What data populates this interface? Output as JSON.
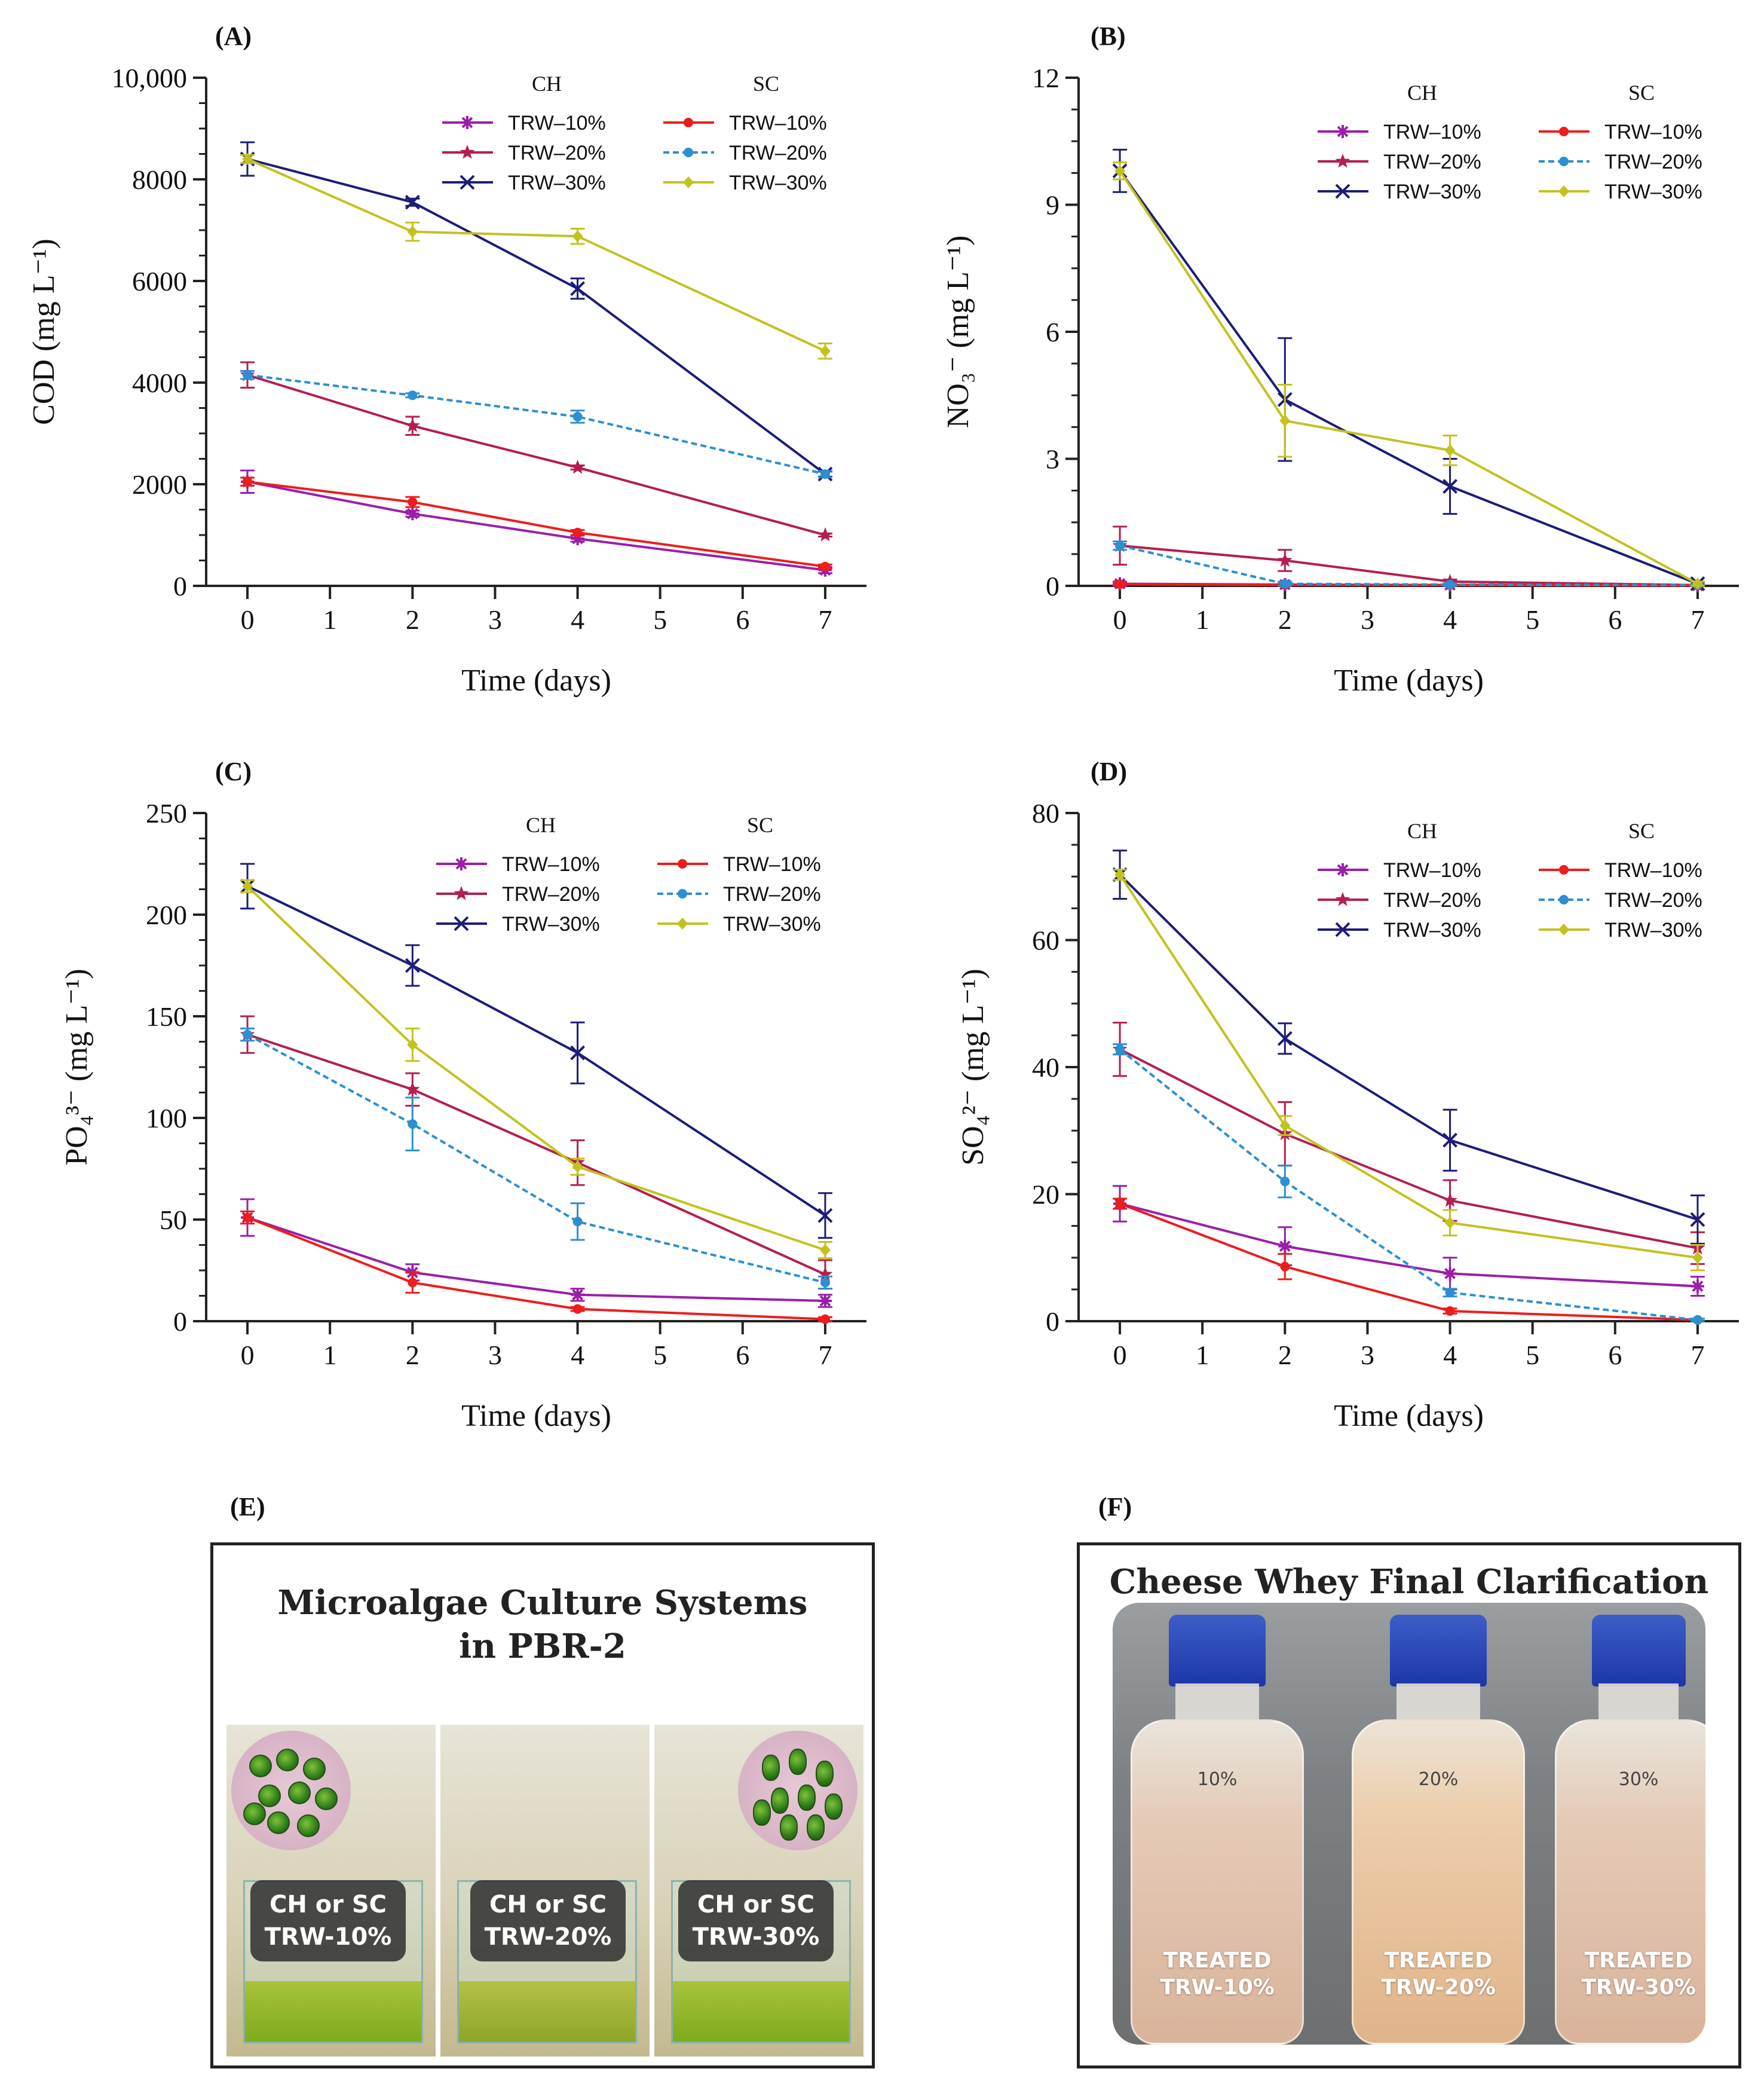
{
  "colors": {
    "ch10": "#9b1ea8",
    "ch20": "#b41e50",
    "ch30": "#1c1c7a",
    "sc10": "#ee1c1c",
    "sc20": "#2b8fd0",
    "sc30": "#c2c21e"
  },
  "legend": {
    "group_ch": "CH",
    "group_sc": "SC",
    "labels": [
      "TRW–10%",
      "TRW–20%",
      "TRW–30%"
    ]
  },
  "chart_data": [
    {
      "panel": "(A)",
      "type": "line",
      "xlabel": "Time (days)",
      "ylabel": "COD (mg L⁻¹)",
      "ylim": [
        0,
        10000
      ],
      "yticks": [
        0,
        2000,
        4000,
        6000,
        8000,
        10000
      ],
      "ytick_labels": [
        "0",
        "2000",
        "4000",
        "6000",
        "8000",
        "10,000"
      ],
      "xlim": [
        -0.5,
        7.5
      ],
      "xticks": [
        0,
        1,
        2,
        3,
        4,
        5,
        6,
        7
      ],
      "x": [
        0,
        2,
        4,
        7
      ],
      "series": [
        {
          "name": "CH TRW–10%",
          "key": "ch10",
          "marker": "asterisk",
          "values": [
            2050,
            1420,
            930,
            310
          ],
          "err": [
            220,
            60,
            60,
            60
          ]
        },
        {
          "name": "CH TRW–20%",
          "key": "ch20",
          "marker": "star",
          "values": [
            4150,
            3150,
            2330,
            1000
          ],
          "err": [
            250,
            180,
            40,
            30
          ]
        },
        {
          "name": "CH TRW–30%",
          "key": "ch30",
          "marker": "x",
          "values": [
            8400,
            7550,
            5850,
            2200
          ],
          "err": [
            330,
            70,
            200,
            50
          ]
        },
        {
          "name": "SC TRW–10%",
          "key": "sc10",
          "marker": "dot",
          "values": [
            2050,
            1650,
            1050,
            380
          ],
          "err": [
            80,
            100,
            50,
            40
          ]
        },
        {
          "name": "SC TRW–20%",
          "key": "sc20",
          "marker": "dot",
          "dashed": true,
          "values": [
            4150,
            3750,
            3330,
            2200
          ],
          "err": [
            80,
            40,
            120,
            60
          ]
        },
        {
          "name": "SC TRW–30%",
          "key": "sc30",
          "marker": "diamond",
          "values": [
            8400,
            6970,
            6880,
            4620
          ],
          "err": [
            80,
            180,
            150,
            150
          ]
        }
      ]
    },
    {
      "panel": "(B)",
      "type": "line",
      "xlabel": "Time (days)",
      "ylabel": "NO₃⁻ (mg L⁻¹)",
      "ylim": [
        0,
        12
      ],
      "yticks": [
        0,
        3,
        6,
        9,
        12
      ],
      "ytick_labels": [
        "0",
        "3",
        "6",
        "9",
        "12"
      ],
      "xlim": [
        -0.5,
        7.5
      ],
      "xticks": [
        0,
        1,
        2,
        3,
        4,
        5,
        6,
        7
      ],
      "x": [
        0,
        2,
        4,
        7
      ],
      "series": [
        {
          "name": "CH TRW–10%",
          "key": "ch10",
          "marker": "asterisk",
          "values": [
            0.05,
            0.03,
            0.02,
            0.01
          ],
          "err": [
            0.05,
            0.03,
            0.03,
            0.02
          ]
        },
        {
          "name": "CH TRW–20%",
          "key": "ch20",
          "marker": "star",
          "values": [
            0.95,
            0.6,
            0.1,
            0.02
          ],
          "err": [
            0.45,
            0.25,
            0.05,
            0.02
          ]
        },
        {
          "name": "CH TRW–30%",
          "key": "ch30",
          "marker": "x",
          "values": [
            9.8,
            4.4,
            2.35,
            0.05
          ],
          "err": [
            0.5,
            1.45,
            0.65,
            0.05
          ]
        },
        {
          "name": "SC TRW–10%",
          "key": "sc10",
          "marker": "dot",
          "values": [
            0.04,
            0.02,
            0.02,
            0.01
          ],
          "err": [
            0.02,
            0.02,
            0.02,
            0.01
          ]
        },
        {
          "name": "SC TRW–20%",
          "key": "sc20",
          "marker": "dot",
          "dashed": true,
          "values": [
            0.95,
            0.05,
            0.03,
            0.02
          ],
          "err": [
            0.1,
            0.05,
            0.03,
            0.02
          ]
        },
        {
          "name": "SC TRW–30%",
          "key": "sc30",
          "marker": "diamond",
          "values": [
            9.8,
            3.9,
            3.2,
            0.05
          ],
          "err": [
            0.2,
            0.85,
            0.35,
            0.05
          ]
        }
      ]
    },
    {
      "panel": "(C)",
      "type": "line",
      "xlabel": "Time (days)",
      "ylabel": "PO₄³⁻ (mg L⁻¹)",
      "ylim": [
        0,
        250
      ],
      "yticks": [
        0,
        50,
        100,
        150,
        200,
        250
      ],
      "ytick_labels": [
        "0",
        "50",
        "100",
        "150",
        "200",
        "250"
      ],
      "xlim": [
        -0.5,
        7.5
      ],
      "xticks": [
        0,
        1,
        2,
        3,
        4,
        5,
        6,
        7
      ],
      "x": [
        0,
        2,
        4,
        7
      ],
      "series": [
        {
          "name": "CH TRW–10%",
          "key": "ch10",
          "marker": "asterisk",
          "values": [
            51,
            24,
            13,
            10
          ],
          "err": [
            9,
            4,
            3,
            3
          ]
        },
        {
          "name": "CH TRW–20%",
          "key": "ch20",
          "marker": "star",
          "values": [
            141,
            114,
            78,
            23
          ],
          "err": [
            9,
            8,
            11,
            7
          ]
        },
        {
          "name": "CH TRW–30%",
          "key": "ch30",
          "marker": "x",
          "values": [
            214,
            175,
            132,
            52
          ],
          "err": [
            11,
            10,
            15,
            11
          ]
        },
        {
          "name": "SC TRW–10%",
          "key": "sc10",
          "marker": "dot",
          "values": [
            51,
            19,
            6,
            1
          ],
          "err": [
            3,
            5,
            1,
            1
          ]
        },
        {
          "name": "SC TRW–20%",
          "key": "sc20",
          "marker": "dot",
          "dashed": true,
          "values": [
            141,
            97,
            49,
            19
          ],
          "err": [
            3,
            13,
            9,
            3
          ]
        },
        {
          "name": "SC TRW–30%",
          "key": "sc30",
          "marker": "diamond",
          "values": [
            214,
            136,
            76,
            35
          ],
          "err": [
            3,
            8,
            4,
            4
          ]
        }
      ]
    },
    {
      "panel": "(D)",
      "type": "line",
      "xlabel": "Time (days)",
      "ylabel": "SO₄²⁻ (mg L⁻¹)",
      "ylim": [
        0,
        80
      ],
      "yticks": [
        0,
        20,
        40,
        60,
        80
      ],
      "ytick_labels": [
        "0",
        "20",
        "40",
        "60",
        "80"
      ],
      "xlim": [
        -0.5,
        7.5
      ],
      "xticks": [
        0,
        1,
        2,
        3,
        4,
        5,
        6,
        7
      ],
      "x": [
        0,
        2,
        4,
        7
      ],
      "series": [
        {
          "name": "CH TRW–10%",
          "key": "ch10",
          "marker": "asterisk",
          "values": [
            18.5,
            11.8,
            7.5,
            5.5
          ],
          "err": [
            2.8,
            3,
            2.5,
            1.5
          ]
        },
        {
          "name": "CH TRW–20%",
          "key": "ch20",
          "marker": "star",
          "values": [
            42.8,
            29.5,
            19,
            11.5
          ],
          "err": [
            4.2,
            5,
            3.2,
            2.5
          ]
        },
        {
          "name": "CH TRW–30%",
          "key": "ch30",
          "marker": "x",
          "values": [
            70.3,
            44.5,
            28.5,
            16
          ],
          "err": [
            3.8,
            2.4,
            4.8,
            3.8
          ]
        },
        {
          "name": "SC TRW–10%",
          "key": "sc10",
          "marker": "dot",
          "values": [
            18.5,
            8.6,
            1.6,
            0.2
          ],
          "err": [
            0.8,
            2,
            0.4,
            0.2
          ]
        },
        {
          "name": "SC TRW–20%",
          "key": "sc20",
          "marker": "dot",
          "dashed": true,
          "values": [
            42.8,
            22,
            4.5,
            0.2
          ],
          "err": [
            0.8,
            2.5,
            0.6,
            0.2
          ]
        },
        {
          "name": "SC TRW–30%",
          "key": "sc30",
          "marker": "diamond",
          "values": [
            70.3,
            30.8,
            15.5,
            10
          ],
          "err": [
            0.8,
            1.5,
            2,
            2
          ]
        }
      ]
    }
  ],
  "panel_e": {
    "label": "(E)",
    "title_line1": "Microalgae Culture Systems",
    "title_line2": "in PBR-2",
    "chips": [
      {
        "line1": "CH or SC",
        "line2": "TRW-10%"
      },
      {
        "line1": "CH or SC",
        "line2": "TRW-20%"
      },
      {
        "line1": "CH or SC",
        "line2": "TRW-30%"
      }
    ]
  },
  "panel_f": {
    "label": "(F)",
    "title": "Cheese Whey Final Clarification",
    "bottles": [
      {
        "mark": "10%",
        "line1": "TREATED",
        "line2": "TRW-10%"
      },
      {
        "mark": "20%",
        "line1": "TREATED",
        "line2": "TRW-20%"
      },
      {
        "mark": "30%",
        "line1": "TREATED",
        "line2": "TRW-30%"
      }
    ]
  }
}
